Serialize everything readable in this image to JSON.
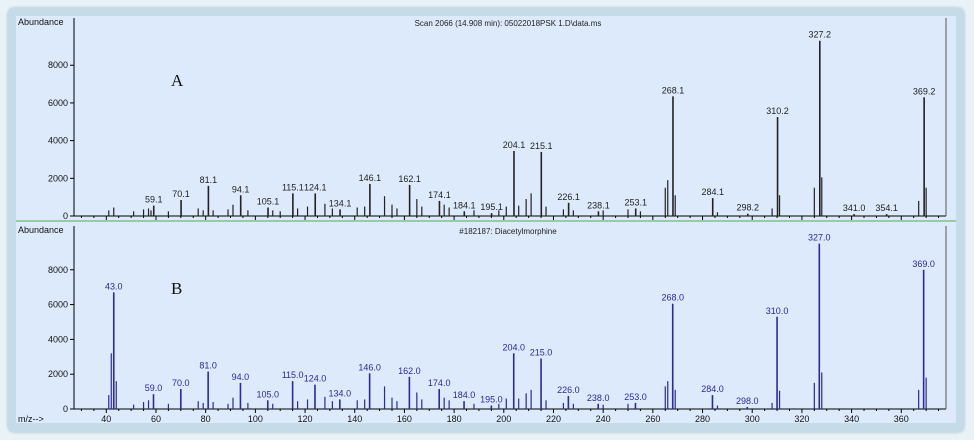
{
  "chart_data": [
    {
      "type": "bar",
      "panel_letter": "A",
      "title": "Scan 2066 (14.908 min): 05022018PSK 1.D\\data.ms",
      "ylabel": "Abundance",
      "xlabel": "m/z-->",
      "xlim": [
        27,
        378
      ],
      "ylim": [
        0,
        10400
      ],
      "x_ticks": [
        40,
        60,
        80,
        100,
        120,
        140,
        160,
        180,
        200,
        220,
        240,
        260,
        280,
        300,
        320,
        340,
        360
      ],
      "y_ticks": [
        0,
        2000,
        4000,
        6000,
        8000
      ],
      "grid": false,
      "color": "#222222",
      "peaks": [
        {
          "mz": 41,
          "abundance": 300
        },
        {
          "mz": 43,
          "abundance": 450
        },
        {
          "mz": 51,
          "abundance": 250
        },
        {
          "mz": 55,
          "abundance": 350
        },
        {
          "mz": 57,
          "abundance": 400
        },
        {
          "mz": 58,
          "abundance": 300
        },
        {
          "mz": 59.1,
          "abundance": 550,
          "label": "59.1"
        },
        {
          "mz": 65,
          "abundance": 250
        },
        {
          "mz": 70.1,
          "abundance": 850,
          "label": "70.1"
        },
        {
          "mz": 77,
          "abundance": 400
        },
        {
          "mz": 79,
          "abundance": 300
        },
        {
          "mz": 81.1,
          "abundance": 1600,
          "label": "81.1"
        },
        {
          "mz": 83,
          "abundance": 300
        },
        {
          "mz": 89,
          "abundance": 350
        },
        {
          "mz": 91,
          "abundance": 600
        },
        {
          "mz": 94.1,
          "abundance": 1100,
          "label": "94.1"
        },
        {
          "mz": 97,
          "abundance": 300
        },
        {
          "mz": 105.1,
          "abundance": 450,
          "label": "105.1"
        },
        {
          "mz": 107,
          "abundance": 300
        },
        {
          "mz": 110,
          "abundance": 250
        },
        {
          "mz": 115.1,
          "abundance": 1200,
          "label": "115.1"
        },
        {
          "mz": 117,
          "abundance": 400
        },
        {
          "mz": 121,
          "abundance": 500
        },
        {
          "mz": 124.1,
          "abundance": 1200,
          "label": "124.1"
        },
        {
          "mz": 128,
          "abundance": 650
        },
        {
          "mz": 131,
          "abundance": 400
        },
        {
          "mz": 134.1,
          "abundance": 350,
          "label": "134.1"
        },
        {
          "mz": 141,
          "abundance": 450
        },
        {
          "mz": 144,
          "abundance": 500
        },
        {
          "mz": 146.1,
          "abundance": 1700,
          "label": "146.1"
        },
        {
          "mz": 152,
          "abundance": 1050
        },
        {
          "mz": 155,
          "abundance": 600
        },
        {
          "mz": 157,
          "abundance": 400
        },
        {
          "mz": 162.1,
          "abundance": 1650,
          "label": "162.1"
        },
        {
          "mz": 165,
          "abundance": 900
        },
        {
          "mz": 167,
          "abundance": 500
        },
        {
          "mz": 174.1,
          "abundance": 800,
          "label": "174.1"
        },
        {
          "mz": 176,
          "abundance": 600
        },
        {
          "mz": 178,
          "abundance": 450
        },
        {
          "mz": 184.1,
          "abundance": 250,
          "label": "184.1"
        },
        {
          "mz": 188,
          "abundance": 300
        },
        {
          "mz": 195.1,
          "abundance": 150,
          "label": "195.1"
        },
        {
          "mz": 198,
          "abundance": 300
        },
        {
          "mz": 201,
          "abundance": 500
        },
        {
          "mz": 204.1,
          "abundance": 3450,
          "label": "204.1"
        },
        {
          "mz": 206,
          "abundance": 550
        },
        {
          "mz": 209,
          "abundance": 900
        },
        {
          "mz": 211,
          "abundance": 1200
        },
        {
          "mz": 215.1,
          "abundance": 3400,
          "label": "215.1"
        },
        {
          "mz": 217,
          "abundance": 500
        },
        {
          "mz": 224,
          "abundance": 350
        },
        {
          "mz": 226.1,
          "abundance": 700,
          "label": "226.1"
        },
        {
          "mz": 228,
          "abundance": 300
        },
        {
          "mz": 238.1,
          "abundance": 250,
          "label": "238.1"
        },
        {
          "mz": 240,
          "abundance": 300
        },
        {
          "mz": 250,
          "abundance": 350
        },
        {
          "mz": 253.1,
          "abundance": 400,
          "label": "253.1"
        },
        {
          "mz": 255,
          "abundance": 250
        },
        {
          "mz": 265,
          "abundance": 1500
        },
        {
          "mz": 266,
          "abundance": 1900
        },
        {
          "mz": 268.1,
          "abundance": 6350,
          "label": "268.1"
        },
        {
          "mz": 269,
          "abundance": 1100
        },
        {
          "mz": 284.1,
          "abundance": 950,
          "label": "284.1"
        },
        {
          "mz": 286,
          "abundance": 200
        },
        {
          "mz": 298.2,
          "abundance": 120,
          "label": "298.2"
        },
        {
          "mz": 308,
          "abundance": 400
        },
        {
          "mz": 310.2,
          "abundance": 5250,
          "label": "310.2"
        },
        {
          "mz": 311,
          "abundance": 1100
        },
        {
          "mz": 325,
          "abundance": 1500
        },
        {
          "mz": 327.2,
          "abundance": 9300,
          "label": "327.2"
        },
        {
          "mz": 328,
          "abundance": 2050
        },
        {
          "mz": 341.0,
          "abundance": 100,
          "label": "341.0"
        },
        {
          "mz": 354.1,
          "abundance": 100,
          "label": "354.1"
        },
        {
          "mz": 367,
          "abundance": 800
        },
        {
          "mz": 369.2,
          "abundance": 6300,
          "label": "369.2"
        },
        {
          "mz": 370,
          "abundance": 1500
        }
      ]
    },
    {
      "type": "bar",
      "panel_letter": "B",
      "title": "#182187: Diacetylmorphine",
      "ylabel": "Abundance",
      "xlabel": "m/z-->",
      "xlim": [
        27,
        378
      ],
      "ylim": [
        0,
        10400
      ],
      "x_ticks": [
        40,
        60,
        80,
        100,
        120,
        140,
        160,
        180,
        200,
        220,
        240,
        260,
        280,
        300,
        320,
        340,
        360
      ],
      "y_ticks": [
        0,
        2000,
        4000,
        6000,
        8000
      ],
      "grid": false,
      "color": "#2a2a9a",
      "peaks": [
        {
          "mz": 41,
          "abundance": 800
        },
        {
          "mz": 42,
          "abundance": 3200
        },
        {
          "mz": 43.0,
          "abundance": 6700,
          "label": "43.0"
        },
        {
          "mz": 44,
          "abundance": 1600
        },
        {
          "mz": 51,
          "abundance": 250
        },
        {
          "mz": 55,
          "abundance": 400
        },
        {
          "mz": 57,
          "abundance": 500
        },
        {
          "mz": 59.0,
          "abundance": 850,
          "label": "59.0"
        },
        {
          "mz": 65,
          "abundance": 300
        },
        {
          "mz": 70.0,
          "abundance": 1150,
          "label": "70.0"
        },
        {
          "mz": 77,
          "abundance": 450
        },
        {
          "mz": 79,
          "abundance": 350
        },
        {
          "mz": 81.0,
          "abundance": 2150,
          "label": "81.0"
        },
        {
          "mz": 83,
          "abundance": 400
        },
        {
          "mz": 89,
          "abundance": 300
        },
        {
          "mz": 91,
          "abundance": 650
        },
        {
          "mz": 94.0,
          "abundance": 1500,
          "label": "94.0"
        },
        {
          "mz": 97,
          "abundance": 350
        },
        {
          "mz": 105.0,
          "abundance": 500,
          "label": "105.0"
        },
        {
          "mz": 107,
          "abundance": 300
        },
        {
          "mz": 115.0,
          "abundance": 1600,
          "label": "115.0"
        },
        {
          "mz": 117,
          "abundance": 450
        },
        {
          "mz": 121,
          "abundance": 550
        },
        {
          "mz": 124.0,
          "abundance": 1400,
          "label": "124.0"
        },
        {
          "mz": 128,
          "abundance": 700
        },
        {
          "mz": 131,
          "abundance": 450
        },
        {
          "mz": 134.0,
          "abundance": 550,
          "label": "134.0"
        },
        {
          "mz": 141,
          "abundance": 500
        },
        {
          "mz": 144,
          "abundance": 550
        },
        {
          "mz": 146.0,
          "abundance": 2050,
          "label": "146.0"
        },
        {
          "mz": 152,
          "abundance": 1300
        },
        {
          "mz": 155,
          "abundance": 650
        },
        {
          "mz": 157,
          "abundance": 450
        },
        {
          "mz": 162.0,
          "abundance": 1850,
          "label": "162.0"
        },
        {
          "mz": 165,
          "abundance": 950
        },
        {
          "mz": 167,
          "abundance": 550
        },
        {
          "mz": 174.0,
          "abundance": 1150,
          "label": "174.0"
        },
        {
          "mz": 176,
          "abundance": 650
        },
        {
          "mz": 178,
          "abundance": 500
        },
        {
          "mz": 184.0,
          "abundance": 450,
          "label": "184.0"
        },
        {
          "mz": 188,
          "abundance": 300
        },
        {
          "mz": 195.0,
          "abundance": 200,
          "label": "195.0"
        },
        {
          "mz": 198,
          "abundance": 300
        },
        {
          "mz": 201,
          "abundance": 600
        },
        {
          "mz": 204.0,
          "abundance": 3200,
          "label": "204.0"
        },
        {
          "mz": 206,
          "abundance": 600
        },
        {
          "mz": 209,
          "abundance": 900
        },
        {
          "mz": 211,
          "abundance": 1100
        },
        {
          "mz": 215.0,
          "abundance": 2900,
          "label": "215.0"
        },
        {
          "mz": 217,
          "abundance": 500
        },
        {
          "mz": 224,
          "abundance": 350
        },
        {
          "mz": 226.0,
          "abundance": 750,
          "label": "226.0"
        },
        {
          "mz": 228,
          "abundance": 300
        },
        {
          "mz": 238.0,
          "abundance": 300,
          "label": "238.0"
        },
        {
          "mz": 240,
          "abundance": 250
        },
        {
          "mz": 250,
          "abundance": 300
        },
        {
          "mz": 253.0,
          "abundance": 350,
          "label": "253.0"
        },
        {
          "mz": 265,
          "abundance": 1300
        },
        {
          "mz": 266,
          "abundance": 1600
        },
        {
          "mz": 268.0,
          "abundance": 6050,
          "label": "268.0"
        },
        {
          "mz": 269,
          "abundance": 1100
        },
        {
          "mz": 284.0,
          "abundance": 800,
          "label": "284.0"
        },
        {
          "mz": 286,
          "abundance": 200
        },
        {
          "mz": 298.0,
          "abundance": 120,
          "label": "298.0"
        },
        {
          "mz": 308,
          "abundance": 350
        },
        {
          "mz": 310.0,
          "abundance": 5300,
          "label": "310.0"
        },
        {
          "mz": 311,
          "abundance": 1050
        },
        {
          "mz": 325,
          "abundance": 1500
        },
        {
          "mz": 327.0,
          "abundance": 9500,
          "label": "327.0"
        },
        {
          "mz": 328,
          "abundance": 2100
        },
        {
          "mz": 367,
          "abundance": 1100
        },
        {
          "mz": 369.0,
          "abundance": 8000,
          "label": "369.0"
        },
        {
          "mz": 370,
          "abundance": 1800
        }
      ]
    }
  ]
}
